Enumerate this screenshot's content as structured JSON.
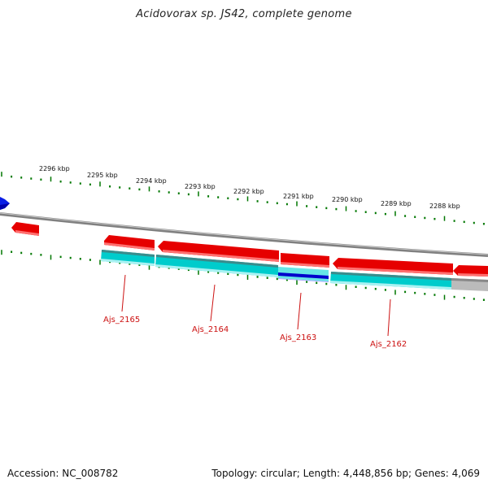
{
  "title": "Acidovorax sp. JS42, complete genome",
  "footer": {
    "accession": "Accession: NC_008782",
    "summary": "Topology: circular; Length: 4,448,856 bp; Genes: 4,069"
  },
  "scale_labels": [
    "2296 kbp",
    "2295 kbp",
    "2294 kbp",
    "2293 kbp",
    "2292 kbp",
    "2291 kbp",
    "2290 kbp",
    "2289 kbp",
    "2288 kbp"
  ],
  "gene_labels": [
    "Ajs_2165",
    "Ajs_2164",
    "Ajs_2163",
    "Ajs_2162"
  ],
  "colors": {
    "cds": "#e60000",
    "cds_light": "#ff8080",
    "coverage": "#00cccc",
    "coverage_light": "#a8f0f0",
    "feature_dark": "#0000cc",
    "tick": "#007700",
    "backbone": "#808080",
    "label": "#cc1111",
    "gray": "#bbbbbb"
  }
}
